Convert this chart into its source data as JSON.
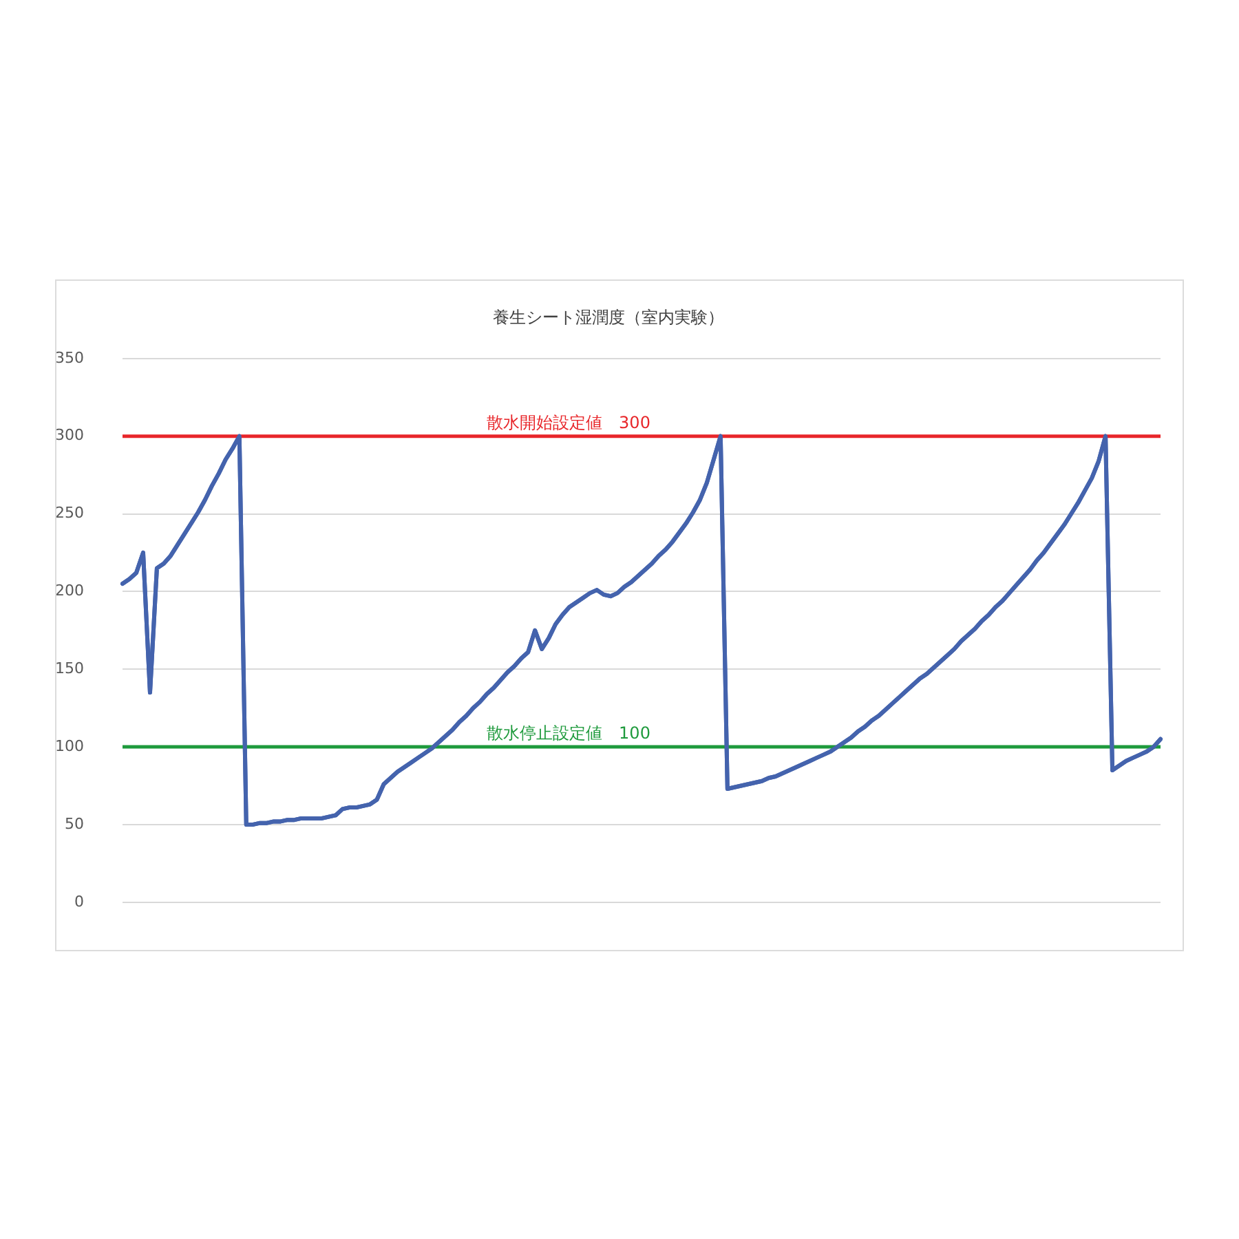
{
  "chart_data": {
    "type": "line",
    "title": "養生シート湿潤度（室内実験）",
    "categories": [
      null,
      null,
      null,
      null,
      null,
      null,
      null,
      null,
      null,
      null,
      null,
      null,
      null,
      null,
      null,
      null,
      null,
      null,
      null,
      null,
      null,
      null,
      null,
      null,
      null,
      null,
      null,
      null,
      null,
      null,
      null,
      null,
      null,
      null,
      null,
      null,
      null,
      null,
      null,
      null,
      null,
      null,
      null,
      null,
      null,
      null,
      null,
      null,
      null,
      null,
      null,
      null,
      null,
      null,
      null,
      null,
      null,
      null,
      null,
      null,
      null,
      null,
      null,
      null,
      null,
      null,
      null,
      null,
      null,
      null,
      null,
      null,
      null,
      null,
      null,
      null,
      null,
      null,
      null,
      null,
      null,
      null,
      null,
      null,
      null,
      null,
      null,
      null,
      null,
      null,
      null,
      null,
      null,
      null,
      null,
      null,
      null,
      null,
      null,
      null,
      null,
      null,
      null,
      null,
      null,
      null,
      null,
      null,
      null,
      null,
      null,
      null,
      null,
      null,
      null,
      null,
      null,
      null,
      null,
      null,
      null,
      null,
      null,
      null,
      null,
      null,
      null,
      null,
      null,
      null,
      null,
      null,
      null,
      null,
      null,
      null,
      null,
      null,
      null,
      null,
      null,
      null,
      null,
      null,
      null,
      null,
      null,
      null,
      null,
      null,
      null,
      null
    ],
    "series": [
      {
        "color": "#4463ad",
        "values": [
          205,
          208,
          212,
          225,
          135,
          215,
          218,
          223,
          230,
          237,
          244,
          251,
          259,
          268,
          276,
          285,
          292,
          300,
          50,
          50,
          51,
          51,
          52,
          52,
          53,
          53,
          54,
          54,
          54,
          54,
          55,
          56,
          60,
          61,
          61,
          62,
          63,
          66,
          76,
          80,
          84,
          87,
          90,
          93,
          96,
          99,
          103,
          107,
          111,
          116,
          120,
          125,
          129,
          134,
          138,
          143,
          148,
          152,
          157,
          161,
          175,
          163,
          170,
          179,
          185,
          190,
          193,
          196,
          199,
          201,
          198,
          197,
          199,
          203,
          206,
          210,
          214,
          218,
          223,
          227,
          232,
          238,
          244,
          251,
          259,
          270,
          285,
          300,
          73,
          74,
          75,
          76,
          77,
          78,
          80,
          81,
          83,
          85,
          87,
          89,
          91,
          93,
          95,
          97,
          100,
          103,
          106,
          110,
          113,
          117,
          120,
          124,
          128,
          132,
          136,
          140,
          144,
          147,
          151,
          155,
          159,
          163,
          168,
          172,
          176,
          181,
          185,
          190,
          194,
          199,
          204,
          209,
          214,
          220,
          225,
          231,
          237,
          243,
          250,
          257,
          265,
          273,
          284,
          300,
          85,
          88,
          91,
          93,
          95,
          97,
          100,
          105
        ]
      }
    ],
    "ylim": [
      0,
      350
    ],
    "yticks": [
      0,
      50,
      100,
      150,
      200,
      250,
      300,
      350
    ],
    "grid": "y",
    "tick_labels": "y",
    "marker": "none",
    "line_style": "solid",
    "ref_lines": [
      {
        "axis": "y",
        "value": 300,
        "label": "散水開始設定値　300",
        "color": "#e8262a"
      },
      {
        "axis": "y",
        "value": 100,
        "label": "散水停止設定値　100",
        "color": "#1e9a3c"
      }
    ]
  }
}
